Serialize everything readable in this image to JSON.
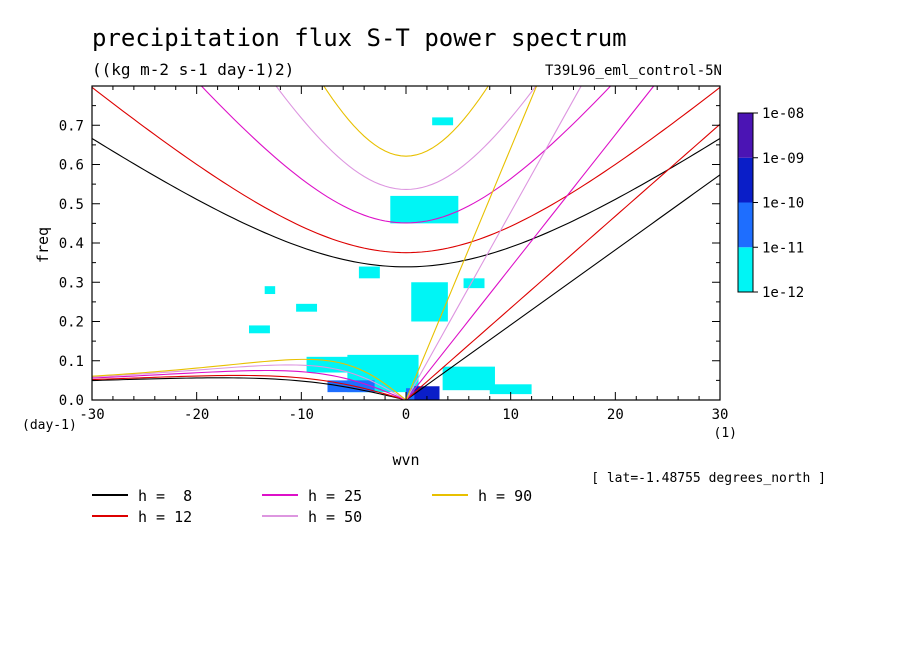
{
  "chart_data": {
    "type": "heatmap",
    "title": "precipitation flux S-T power spectrum",
    "subtitle": "((kg m-2 s-1 day-1)2)",
    "run_label": "T39L96_eml_control-5N",
    "xlabel": "wvn",
    "ylabel": "freq",
    "x_units": "(1)",
    "y_units": "(day-1)",
    "annotation": "[ lat=-1.48755 degrees_north ]",
    "xlim": [
      -30,
      30
    ],
    "ylim": [
      0,
      0.8
    ],
    "x_ticks": [
      -30,
      -20,
      -10,
      0,
      10,
      20,
      30
    ],
    "x_tick_labels": [
      "-30",
      "-20",
      "-10",
      "0",
      "10",
      "20",
      "30"
    ],
    "y_ticks": [
      0,
      0.1,
      0.2,
      0.3,
      0.4,
      0.5,
      0.6,
      0.7
    ],
    "y_tick_labels": [
      "0.0",
      "0.1",
      "0.2",
      "0.3",
      "0.4",
      "0.5",
      "0.6",
      "0.7"
    ],
    "colorbar": {
      "levels": [
        "1e-12",
        "1e-11",
        "1e-10",
        "1e-09",
        "1e-08"
      ],
      "colors": [
        "#00f5f5",
        "#1e6eff",
        "#0a1ec8",
        "#4b14b4"
      ]
    },
    "dispersion_curves": [
      {
        "name": "h =  8",
        "h": 8,
        "color": "#000000"
      },
      {
        "name": "h = 12",
        "h": 12,
        "color": "#dd0000"
      },
      {
        "name": "h = 25",
        "h": 25,
        "color": "#dd10c8"
      },
      {
        "name": "h = 50",
        "h": 50,
        "color": "#dd96e0"
      },
      {
        "name": "h = 90",
        "h": 90,
        "color": "#e8c000"
      }
    ],
    "power_regions": [
      {
        "level": 0,
        "x": [
          -5.6,
          1.2
        ],
        "y": [
          0.02,
          0.115
        ]
      },
      {
        "level": 0,
        "x": [
          -9.5,
          -4.0
        ],
        "y": [
          0.07,
          0.11
        ]
      },
      {
        "level": 0,
        "x": [
          3.5,
          8.5
        ],
        "y": [
          0.025,
          0.085
        ]
      },
      {
        "level": 0,
        "x": [
          8.0,
          12.0
        ],
        "y": [
          0.015,
          0.04
        ]
      },
      {
        "level": 0,
        "x": [
          -1.5,
          5.0
        ],
        "y": [
          0.45,
          0.52
        ]
      },
      {
        "level": 0,
        "x": [
          0.5,
          4.0
        ],
        "y": [
          0.2,
          0.3
        ]
      },
      {
        "level": 0,
        "x": [
          -4.5,
          -2.5
        ],
        "y": [
          0.31,
          0.34
        ]
      },
      {
        "level": 0,
        "x": [
          -15.0,
          -13.0
        ],
        "y": [
          0.17,
          0.19
        ]
      },
      {
        "level": 0,
        "x": [
          -10.5,
          -8.5
        ],
        "y": [
          0.225,
          0.245
        ]
      },
      {
        "level": 0,
        "x": [
          -13.5,
          -12.5
        ],
        "y": [
          0.27,
          0.29
        ]
      },
      {
        "level": 0,
        "x": [
          5.5,
          7.5
        ],
        "y": [
          0.285,
          0.31
        ]
      },
      {
        "level": 0,
        "x": [
          2.5,
          4.5
        ],
        "y": [
          0.7,
          0.72
        ]
      },
      {
        "level": 1,
        "x": [
          -7.5,
          -3.0
        ],
        "y": [
          0.02,
          0.05
        ]
      },
      {
        "level": 1,
        "x": [
          0.0,
          2.5
        ],
        "y": [
          0.0,
          0.03
        ]
      },
      {
        "level": 2,
        "x": [
          0.8,
          3.2
        ],
        "y": [
          0.0,
          0.035
        ]
      }
    ]
  }
}
